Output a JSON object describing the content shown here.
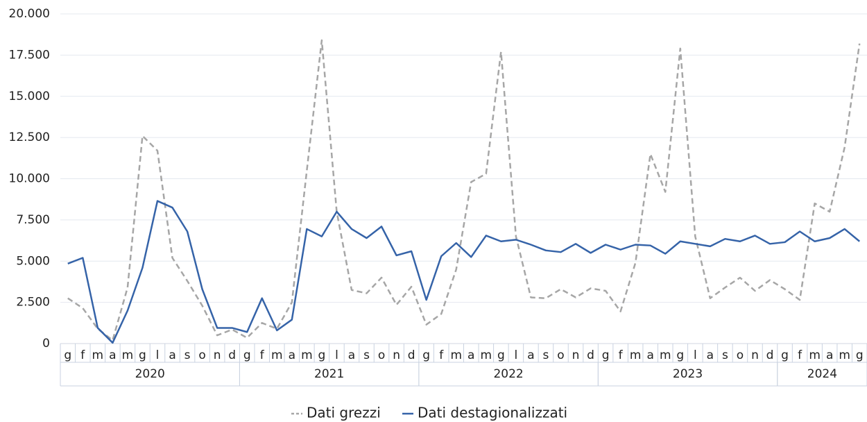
{
  "chart_data": {
    "type": "line",
    "categories": [
      "g",
      "f",
      "m",
      "a",
      "m",
      "g",
      "l",
      "a",
      "s",
      "o",
      "n",
      "d",
      "g",
      "f",
      "m",
      "a",
      "m",
      "g",
      "l",
      "a",
      "s",
      "o",
      "n",
      "d",
      "g",
      "f",
      "m",
      "a",
      "m",
      "g",
      "l",
      "a",
      "s",
      "o",
      "n",
      "d",
      "g",
      "f",
      "m",
      "a",
      "m",
      "g",
      "l",
      "a",
      "s",
      "o",
      "n",
      "d",
      "g",
      "f",
      "m",
      "a",
      "m",
      "g"
    ],
    "years": [
      "2020",
      "2021",
      "2022",
      "2023",
      "2024"
    ],
    "series": [
      {
        "name": "Dati grezzi",
        "color": "#a6a6a6",
        "dashed": true,
        "values": [
          2750,
          2150,
          900,
          200,
          3400,
          12600,
          11700,
          5200,
          3800,
          2300,
          500,
          850,
          350,
          1250,
          900,
          2500,
          10500,
          18400,
          8000,
          3250,
          3050,
          4000,
          2350,
          3450,
          1150,
          1800,
          4500,
          9800,
          10300,
          17700,
          6500,
          2800,
          2750,
          3300,
          2800,
          3350,
          3200,
          1950,
          4900,
          11500,
          9200,
          17900,
          6500,
          2750,
          3400,
          4000,
          3200,
          3850,
          3300,
          2650,
          8500,
          8000,
          11900,
          18200
        ]
      },
      {
        "name": "Dati destagionalizzati",
        "color": "#3563a8",
        "dashed": false,
        "values": [
          4850,
          5200,
          950,
          50,
          2000,
          4600,
          8650,
          8250,
          6800,
          3300,
          950,
          950,
          700,
          2750,
          800,
          1450,
          6950,
          6500,
          8000,
          6950,
          6400,
          7100,
          5350,
          5600,
          2650,
          5300,
          6100,
          5250,
          6550,
          6200,
          6300,
          6000,
          5650,
          5550,
          6050,
          5500,
          6000,
          5700,
          6000,
          5950,
          5450,
          6200,
          6050,
          5900,
          6350,
          6200,
          6550,
          6050,
          6150,
          6800,
          6200,
          6400,
          6950,
          6200
        ]
      }
    ],
    "ylim": [
      0,
      20000
    ],
    "yticks": [
      0,
      {
        "value": 2500,
        "label": "2.500"
      },
      {
        "value": 5000,
        "label": "5.000"
      },
      {
        "value": 7500,
        "label": "7.500"
      },
      {
        "value": 10000,
        "label": "10.000"
      },
      {
        "value": 12500,
        "label": "12.500"
      },
      {
        "value": 15000,
        "label": "15.000"
      },
      {
        "value": 17500,
        "label": "17.500"
      },
      {
        "value": 20000,
        "label": "20.000"
      }
    ],
    "grid": true
  }
}
